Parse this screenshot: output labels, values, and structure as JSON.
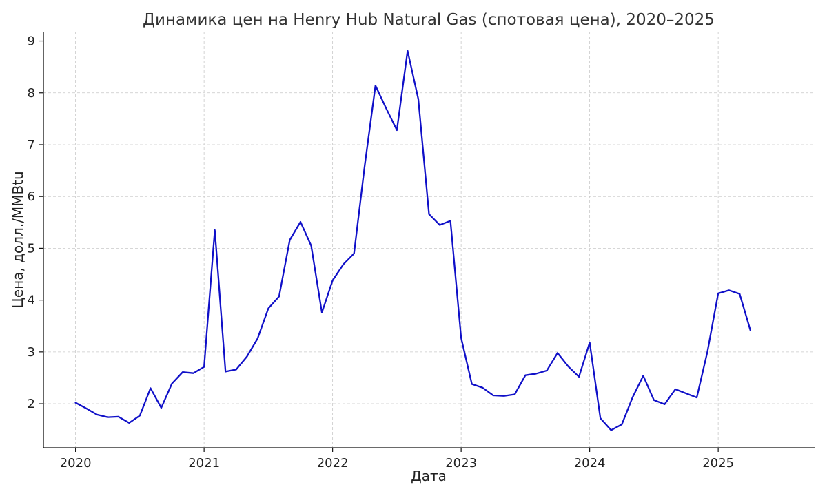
{
  "chart_data": {
    "type": "line",
    "title": "Динамика цен на Henry Hub Natural Gas (спотовая цена), 2020–2025",
    "xlabel": "Дата",
    "ylabel": "Цена, долл./MMBtu",
    "x_ticks": [
      "2020",
      "2021",
      "2022",
      "2023",
      "2024",
      "2025"
    ],
    "y_ticks": [
      "2",
      "3",
      "4",
      "5",
      "6",
      "7",
      "8",
      "9"
    ],
    "xlim": [
      "2019-10",
      "2025-10"
    ],
    "ylim": [
      1.15,
      9.18
    ],
    "grid": true,
    "line_color": "#1010c8",
    "series": [
      {
        "x": [
          "2020-01",
          "2020-02",
          "2020-03",
          "2020-04",
          "2020-05",
          "2020-06",
          "2020-07",
          "2020-08",
          "2020-09",
          "2020-10",
          "2020-11",
          "2020-12",
          "2021-01",
          "2021-02",
          "2021-03",
          "2021-04",
          "2021-05",
          "2021-06",
          "2021-07",
          "2021-08",
          "2021-09",
          "2021-10",
          "2021-11",
          "2021-12",
          "2022-01",
          "2022-02",
          "2022-03",
          "2022-04",
          "2022-05",
          "2022-06",
          "2022-07",
          "2022-08",
          "2022-09",
          "2022-10",
          "2022-11",
          "2022-12",
          "2023-01",
          "2023-02",
          "2023-03",
          "2023-04",
          "2023-05",
          "2023-06",
          "2023-07",
          "2023-08",
          "2023-09",
          "2023-10",
          "2023-11",
          "2023-12",
          "2024-01",
          "2024-02",
          "2024-03",
          "2024-04",
          "2024-05",
          "2024-06",
          "2024-07",
          "2024-08",
          "2024-09",
          "2024-10",
          "2024-11",
          "2024-12",
          "2025-01",
          "2025-02",
          "2025-03",
          "2025-04"
        ],
        "y": [
          2.02,
          1.91,
          1.79,
          1.74,
          1.75,
          1.63,
          1.77,
          2.3,
          1.92,
          2.39,
          2.61,
          2.59,
          2.71,
          5.35,
          2.62,
          2.66,
          2.91,
          3.26,
          3.84,
          4.07,
          5.16,
          5.51,
          5.05,
          3.76,
          4.38,
          4.69,
          4.9,
          6.6,
          8.14,
          7.7,
          7.28,
          8.81,
          7.88,
          5.66,
          5.45,
          5.53,
          3.27,
          2.38,
          2.31,
          2.16,
          2.15,
          2.18,
          2.55,
          2.58,
          2.64,
          2.98,
          2.72,
          2.52,
          3.18,
          1.72,
          1.49,
          1.6,
          2.12,
          2.54,
          2.07,
          1.99,
          2.28,
          2.2,
          2.12,
          3.01,
          4.13,
          4.19,
          4.12,
          3.42
        ]
      }
    ]
  }
}
